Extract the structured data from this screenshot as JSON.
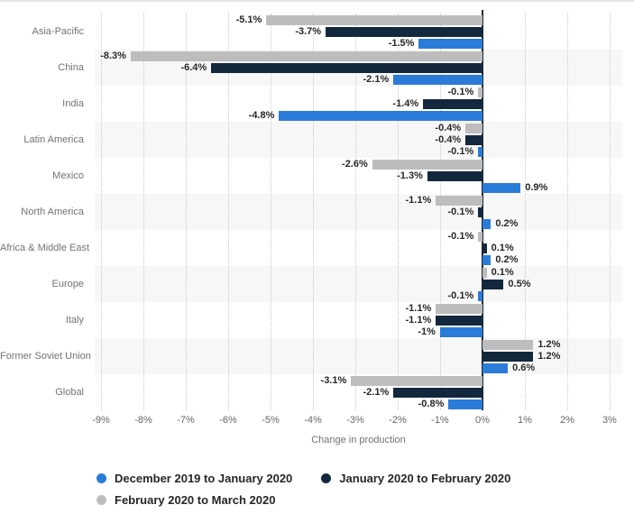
{
  "chart_data": {
    "type": "bar",
    "orientation": "horizontal",
    "title": "",
    "xlabel": "Change in production",
    "ylabel": "",
    "categories": [
      "Asia-Pacific",
      "China",
      "India",
      "Latin America",
      "Mexico",
      "North America",
      "Africa & Middle East",
      "Europe",
      "Italy",
      "Former Soviet Union",
      "Global"
    ],
    "series": [
      {
        "name": "December 2019 to January 2020",
        "color": "#2b7bd9",
        "values": [
          -1.5,
          -2.1,
          -4.8,
          -0.1,
          0.9,
          0.2,
          0.2,
          -0.1,
          -1,
          0.6,
          -0.8
        ],
        "labels": [
          "-1.5%",
          "-2.1%",
          "-4.8%",
          "-0.1%",
          "0.9%",
          "0.2%",
          "0.2%",
          "-0.1%",
          "-1%",
          "0.6%",
          "-0.8%"
        ]
      },
      {
        "name": "January 2020 to February 2020",
        "color": "#14283d",
        "values": [
          -3.7,
          -6.4,
          -1.4,
          -0.4,
          -1.3,
          -0.1,
          0.1,
          0.5,
          -1.1,
          1.2,
          -2.1
        ],
        "labels": [
          "-3.7%",
          "-6.4%",
          "-1.4%",
          "-0.4%",
          "-1.3%",
          "-0.1%",
          "0.1%",
          "0.5%",
          "-1.1%",
          "1.2%",
          "-2.1%"
        ]
      },
      {
        "name": "February 2020 to March 2020",
        "color": "#bdbdbd",
        "values": [
          -5.1,
          -8.3,
          -0.1,
          -0.4,
          -2.6,
          -1.1,
          -0.1,
          0.1,
          -1.1,
          1.2,
          -3.1
        ],
        "labels": [
          "-5.1%",
          "-8.3%",
          "-0.1%",
          "-0.4%",
          "-2.6%",
          "-1.1%",
          "-0.1%",
          "0.1%",
          "-1.1%",
          "1.2%",
          "-3.1%"
        ]
      }
    ],
    "row_order_top_to_bottom": [
      "February 2020 to March 2020",
      "January 2020 to February 2020",
      "December 2019 to January 2020"
    ],
    "xticks": [
      {
        "value": -9,
        "label": "-9%"
      },
      {
        "value": -8,
        "label": "-8%"
      },
      {
        "value": -7,
        "label": "-7%"
      },
      {
        "value": -6,
        "label": "-6%"
      },
      {
        "value": -5,
        "label": "-5%"
      },
      {
        "value": -4,
        "label": "-4%"
      },
      {
        "value": -3,
        "label": "-3%"
      },
      {
        "value": -2,
        "label": "-2%"
      },
      {
        "value": -1,
        "label": "-1%"
      },
      {
        "value": 0,
        "label": "0%"
      },
      {
        "value": 1,
        "label": "1%"
      },
      {
        "value": 2,
        "label": "2%"
      },
      {
        "value": 3,
        "label": "3%"
      }
    ],
    "xlim": [
      -9.15,
      3.3
    ],
    "grid": "dotted-vertical",
    "legend_position": "bottom-left",
    "colors": {
      "band_alt": "#f7f7f7",
      "gridline": "#c9c9c9",
      "zero_axis": "#1b2634",
      "value_label_text": "#262626",
      "category_text": "#737373",
      "tick_text": "#666666",
      "legend_text": "#262626"
    }
  }
}
